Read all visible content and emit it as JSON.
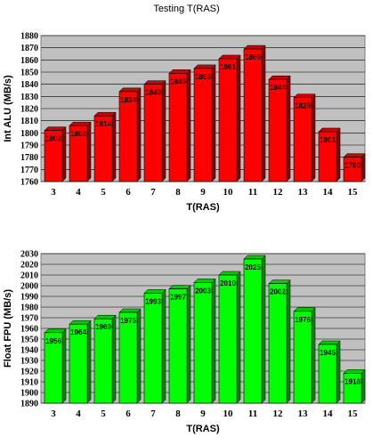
{
  "title": "Testing T(RAS)",
  "chart_data": [
    {
      "type": "bar",
      "xlabel": "T(RAS)",
      "ylabel": "Int ALU (MB/s)",
      "categories": [
        "3",
        "4",
        "5",
        "6",
        "7",
        "8",
        "9",
        "10",
        "11",
        "12",
        "13",
        "14",
        "15"
      ],
      "values": [
        1802,
        1806,
        1814,
        1834,
        1840,
        1849,
        1853,
        1861,
        1869,
        1844,
        1829,
        1801,
        1780
      ],
      "ylim": [
        1760,
        1880
      ],
      "ytick_step": 10,
      "bar_color": "#ff0000",
      "grid": true
    },
    {
      "type": "bar",
      "xlabel": "T(RAS)",
      "ylabel": "Float FPU (MB/s)",
      "categories": [
        "3",
        "4",
        "5",
        "6",
        "7",
        "8",
        "9",
        "10",
        "11",
        "12",
        "13",
        "14",
        "15"
      ],
      "values": [
        1956,
        1964,
        1969,
        1975,
        1993,
        1997,
        2003,
        2010,
        2025,
        2002,
        1976,
        1945,
        1918
      ],
      "ylim": [
        1890,
        2030
      ],
      "ytick_step": 10,
      "bar_color": "#00ff00",
      "grid": true
    }
  ]
}
